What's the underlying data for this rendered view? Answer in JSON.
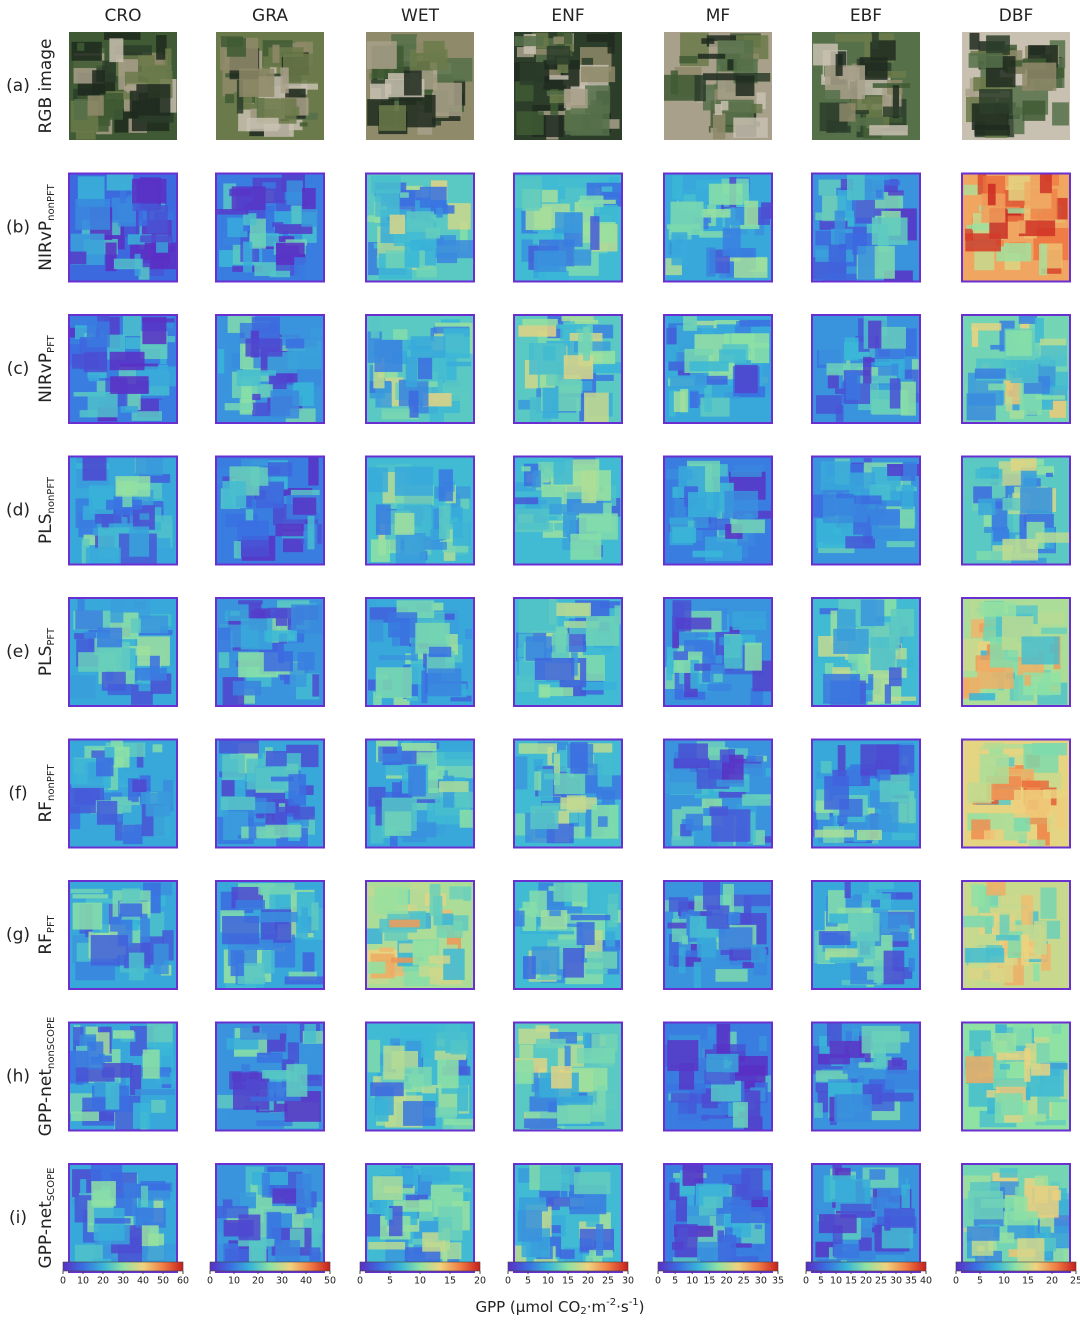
{
  "columns": [
    "CRO",
    "GRA",
    "WET",
    "ENF",
    "MF",
    "EBF",
    "DBF"
  ],
  "rows": [
    {
      "label": "(a)",
      "name": "RGB image"
    },
    {
      "label": "(b)",
      "name": "NIRvP",
      "sub": "nonPFT"
    },
    {
      "label": "(c)",
      "name": "NIRvP",
      "sub": "PFT"
    },
    {
      "label": "(d)",
      "name": "PLS",
      "sub": "nonPFT"
    },
    {
      "label": "(e)",
      "name": "PLS",
      "sub": "PFT"
    },
    {
      "label": "(f)",
      "name": "RF",
      "sub": "nonPFT"
    },
    {
      "label": "(g)",
      "name": "RF",
      "sub": "PFT"
    },
    {
      "label": "(h)",
      "name": "GPP-net",
      "sub": "nonSCOPE"
    },
    {
      "label": "(i)",
      "name": "GPP-net",
      "sub": "SCOPE"
    }
  ],
  "colorbars": [
    {
      "ticks": [
        0,
        10,
        20,
        30,
        40,
        50,
        60
      ]
    },
    {
      "ticks": [
        0,
        10,
        20,
        30,
        40,
        50
      ]
    },
    {
      "ticks": [
        0,
        5,
        10,
        15,
        20
      ]
    },
    {
      "ticks": [
        0,
        5,
        10,
        15,
        20,
        25,
        30
      ]
    },
    {
      "ticks": [
        0,
        5,
        10,
        15,
        20,
        25,
        30,
        35
      ]
    },
    {
      "ticks": [
        0,
        5,
        10,
        15,
        20,
        25,
        30,
        35,
        40
      ]
    },
    {
      "ticks": [
        0,
        5,
        10,
        15,
        20,
        25
      ]
    }
  ],
  "axis_label": {
    "parts": [
      "GPP (μmol CO",
      "2",
      "·m",
      "-2",
      "·s",
      "-1",
      ")"
    ]
  }
}
